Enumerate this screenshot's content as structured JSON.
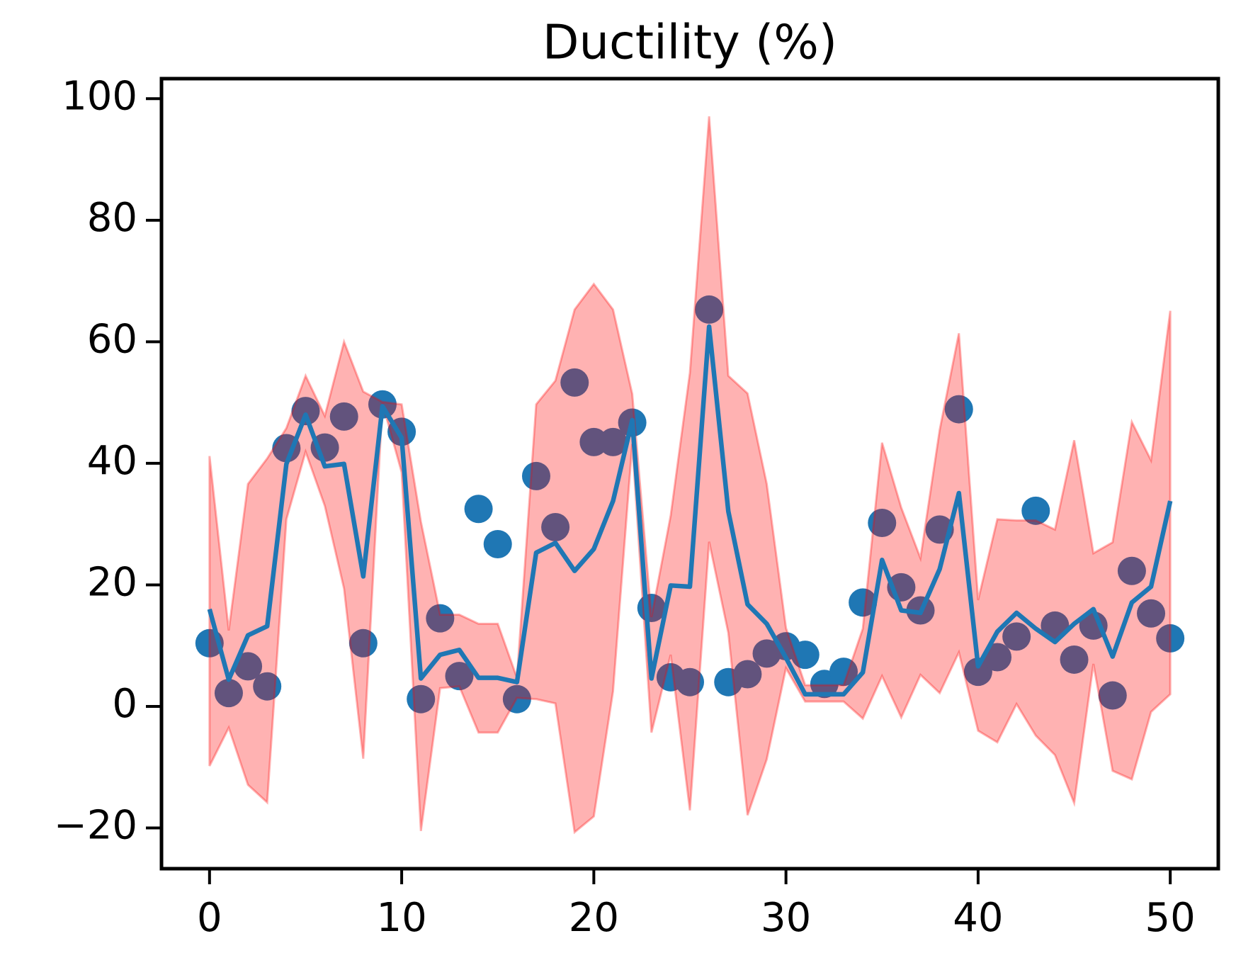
{
  "chart_data": {
    "type": "line",
    "title": "Ductility (%)",
    "x": [
      0,
      1,
      2,
      3,
      4,
      5,
      6,
      7,
      8,
      9,
      10,
      11,
      12,
      13,
      14,
      15,
      16,
      17,
      18,
      19,
      20,
      21,
      22,
      23,
      24,
      25,
      26,
      27,
      28,
      29,
      30,
      31,
      32,
      33,
      34,
      35,
      36,
      37,
      38,
      39,
      40,
      41,
      42,
      43,
      44,
      45,
      46,
      47,
      48,
      49,
      50
    ],
    "xlim": [
      -2.5,
      52.5
    ],
    "xticks": [
      0,
      10,
      20,
      30,
      40,
      50
    ],
    "ylim": [
      -26.7,
      103.3
    ],
    "yticks": [
      {
        "value": -20,
        "label": "−20"
      },
      0,
      20,
      40,
      60,
      80,
      100
    ],
    "series": [
      {
        "type": "scatter",
        "color": "#1f77b4",
        "values": [
          10.4,
          2.2,
          6.6,
          3.3,
          42.5,
          48.6,
          42.6,
          47.7,
          10.4,
          49.7,
          45.2,
          1.2,
          14.5,
          5.0,
          32.5,
          26.7,
          1.2,
          37.9,
          29.5,
          53.3,
          43.5,
          43.5,
          46.7,
          16.2,
          4.8,
          4.0,
          65.3,
          4.0,
          5.3,
          8.7,
          9.9,
          8.5,
          3.7,
          5.7,
          17.1,
          30.2,
          19.6,
          15.8,
          29.1,
          48.9,
          5.7,
          8.1,
          11.5,
          32.2,
          13.3,
          7.7,
          13.3,
          1.8,
          22.3,
          15.3,
          11.2
        ]
      },
      {
        "type": "band",
        "color": "#ff0000",
        "upper": [
          41.2,
          12.5,
          36.6,
          40.8,
          45.8,
          54.4,
          47.8,
          60.0,
          51.8,
          50.1,
          49.7,
          30.4,
          15.1,
          15.1,
          13.6,
          13.6,
          4.7,
          49.7,
          53.6,
          65.3,
          69.5,
          65.3,
          51.4,
          14.7,
          31.4,
          54.9,
          97.1,
          54.4,
          51.5,
          36.6,
          12.9,
          3.5,
          3.5,
          3.5,
          12.8,
          43.4,
          32.7,
          24.4,
          45.5,
          61.4,
          17.5,
          30.8,
          30.6,
          30.6,
          29.1,
          43.8,
          25.2,
          27.0,
          46.8,
          40.5,
          65.1
        ],
        "lower": [
          -9.8,
          -3.5,
          -12.9,
          -15.8,
          30.8,
          41.9,
          33.0,
          19.4,
          -8.6,
          49.9,
          38.5,
          -20.5,
          3.0,
          3.3,
          -4.3,
          -4.3,
          1.4,
          1.2,
          0.5,
          -20.7,
          -18.1,
          2.5,
          43.2,
          -4.3,
          8.5,
          -17.1,
          27.1,
          12.1,
          -17.9,
          -8.7,
          6.3,
          0.8,
          0.8,
          0.8,
          -2.0,
          5.0,
          -1.8,
          5.2,
          2.2,
          8.9,
          -4.0,
          -5.9,
          0.4,
          -4.8,
          -8.0,
          -15.9,
          7.0,
          -10.6,
          -12.0,
          -0.9,
          2.0
        ]
      },
      {
        "type": "line",
        "color": "#1f77b4",
        "values": [
          16.0,
          4.4,
          11.7,
          13.2,
          39.9,
          48.0,
          39.5,
          39.9,
          21.4,
          49.4,
          44.2,
          4.6,
          8.5,
          9.3,
          4.7,
          4.7,
          4.0,
          25.3,
          26.9,
          22.3,
          25.9,
          33.8,
          47.1,
          4.6,
          19.9,
          19.7,
          62.5,
          32.1,
          16.8,
          13.6,
          8.0,
          2.0,
          2.0,
          2.0,
          5.6,
          24.1,
          15.8,
          15.4,
          22.6,
          35.1,
          6.6,
          12.3,
          15.4,
          12.8,
          10.6,
          13.6,
          16.0,
          8.2,
          17.1,
          19.7,
          33.8
        ]
      }
    ]
  }
}
